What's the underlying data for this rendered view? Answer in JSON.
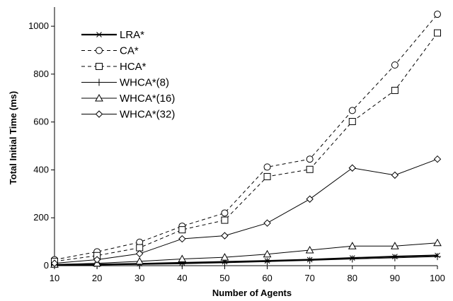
{
  "chart_data": {
    "type": "line",
    "xlabel": "Number of Agents",
    "ylabel": "Total Initial Time (ms)",
    "x": [
      10,
      20,
      30,
      40,
      50,
      60,
      70,
      80,
      90,
      100
    ],
    "xlim": [
      10,
      100
    ],
    "ylim": [
      0,
      1080
    ],
    "xticks": [
      10,
      20,
      30,
      40,
      50,
      60,
      70,
      80,
      90,
      100
    ],
    "yticks": [
      0,
      200,
      400,
      600,
      800,
      1000
    ],
    "grid": false,
    "legend_position": "top-left",
    "series": [
      {
        "name": "LRA*",
        "marker": "x",
        "dash": "solid",
        "width": 2.2,
        "values": [
          2,
          5,
          8,
          12,
          16,
          20,
          25,
          32,
          38,
          43
        ]
      },
      {
        "name": "CA*",
        "marker": "circle",
        "dash": "dashed",
        "width": 1,
        "values": [
          25,
          58,
          98,
          165,
          220,
          412,
          445,
          648,
          838,
          1050
        ]
      },
      {
        "name": "HCA*",
        "marker": "square",
        "dash": "dashed",
        "width": 1,
        "values": [
          18,
          42,
          75,
          150,
          190,
          372,
          402,
          602,
          732,
          972
        ]
      },
      {
        "name": "WHCA*(8)",
        "marker": "plus",
        "dash": "solid",
        "width": 1,
        "values": [
          2,
          3,
          5,
          8,
          12,
          17,
          22,
          28,
          33,
          38
        ]
      },
      {
        "name": "WHCA*(16)",
        "marker": "triangle",
        "dash": "solid",
        "width": 1,
        "values": [
          5,
          10,
          18,
          28,
          35,
          48,
          65,
          82,
          82,
          95
        ]
      },
      {
        "name": "WHCA*(32)",
        "marker": "diamond",
        "dash": "solid",
        "width": 1,
        "values": [
          10,
          25,
          50,
          112,
          125,
          178,
          278,
          408,
          378,
          445
        ]
      }
    ]
  }
}
